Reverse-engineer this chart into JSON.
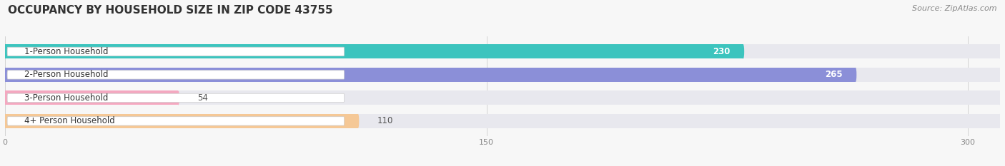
{
  "title": "OCCUPANCY BY HOUSEHOLD SIZE IN ZIP CODE 43755",
  "source": "Source: ZipAtlas.com",
  "categories": [
    "1-Person Household",
    "2-Person Household",
    "3-Person Household",
    "4+ Person Household"
  ],
  "values": [
    230,
    265,
    54,
    110
  ],
  "bar_colors": [
    "#3cc4be",
    "#8b8fd8",
    "#f4a8c0",
    "#f5c896"
  ],
  "bar_bg_color": "#e8e8ee",
  "label_bg_color": "#ffffff",
  "xlim": [
    0,
    310
  ],
  "xticks": [
    0,
    150,
    300
  ],
  "title_fontsize": 11,
  "label_fontsize": 8.5,
  "value_fontsize": 8.5,
  "source_fontsize": 8,
  "bar_height": 0.62,
  "figsize": [
    14.06,
    2.33
  ],
  "dpi": 100,
  "bg_color": "#f7f7f7"
}
